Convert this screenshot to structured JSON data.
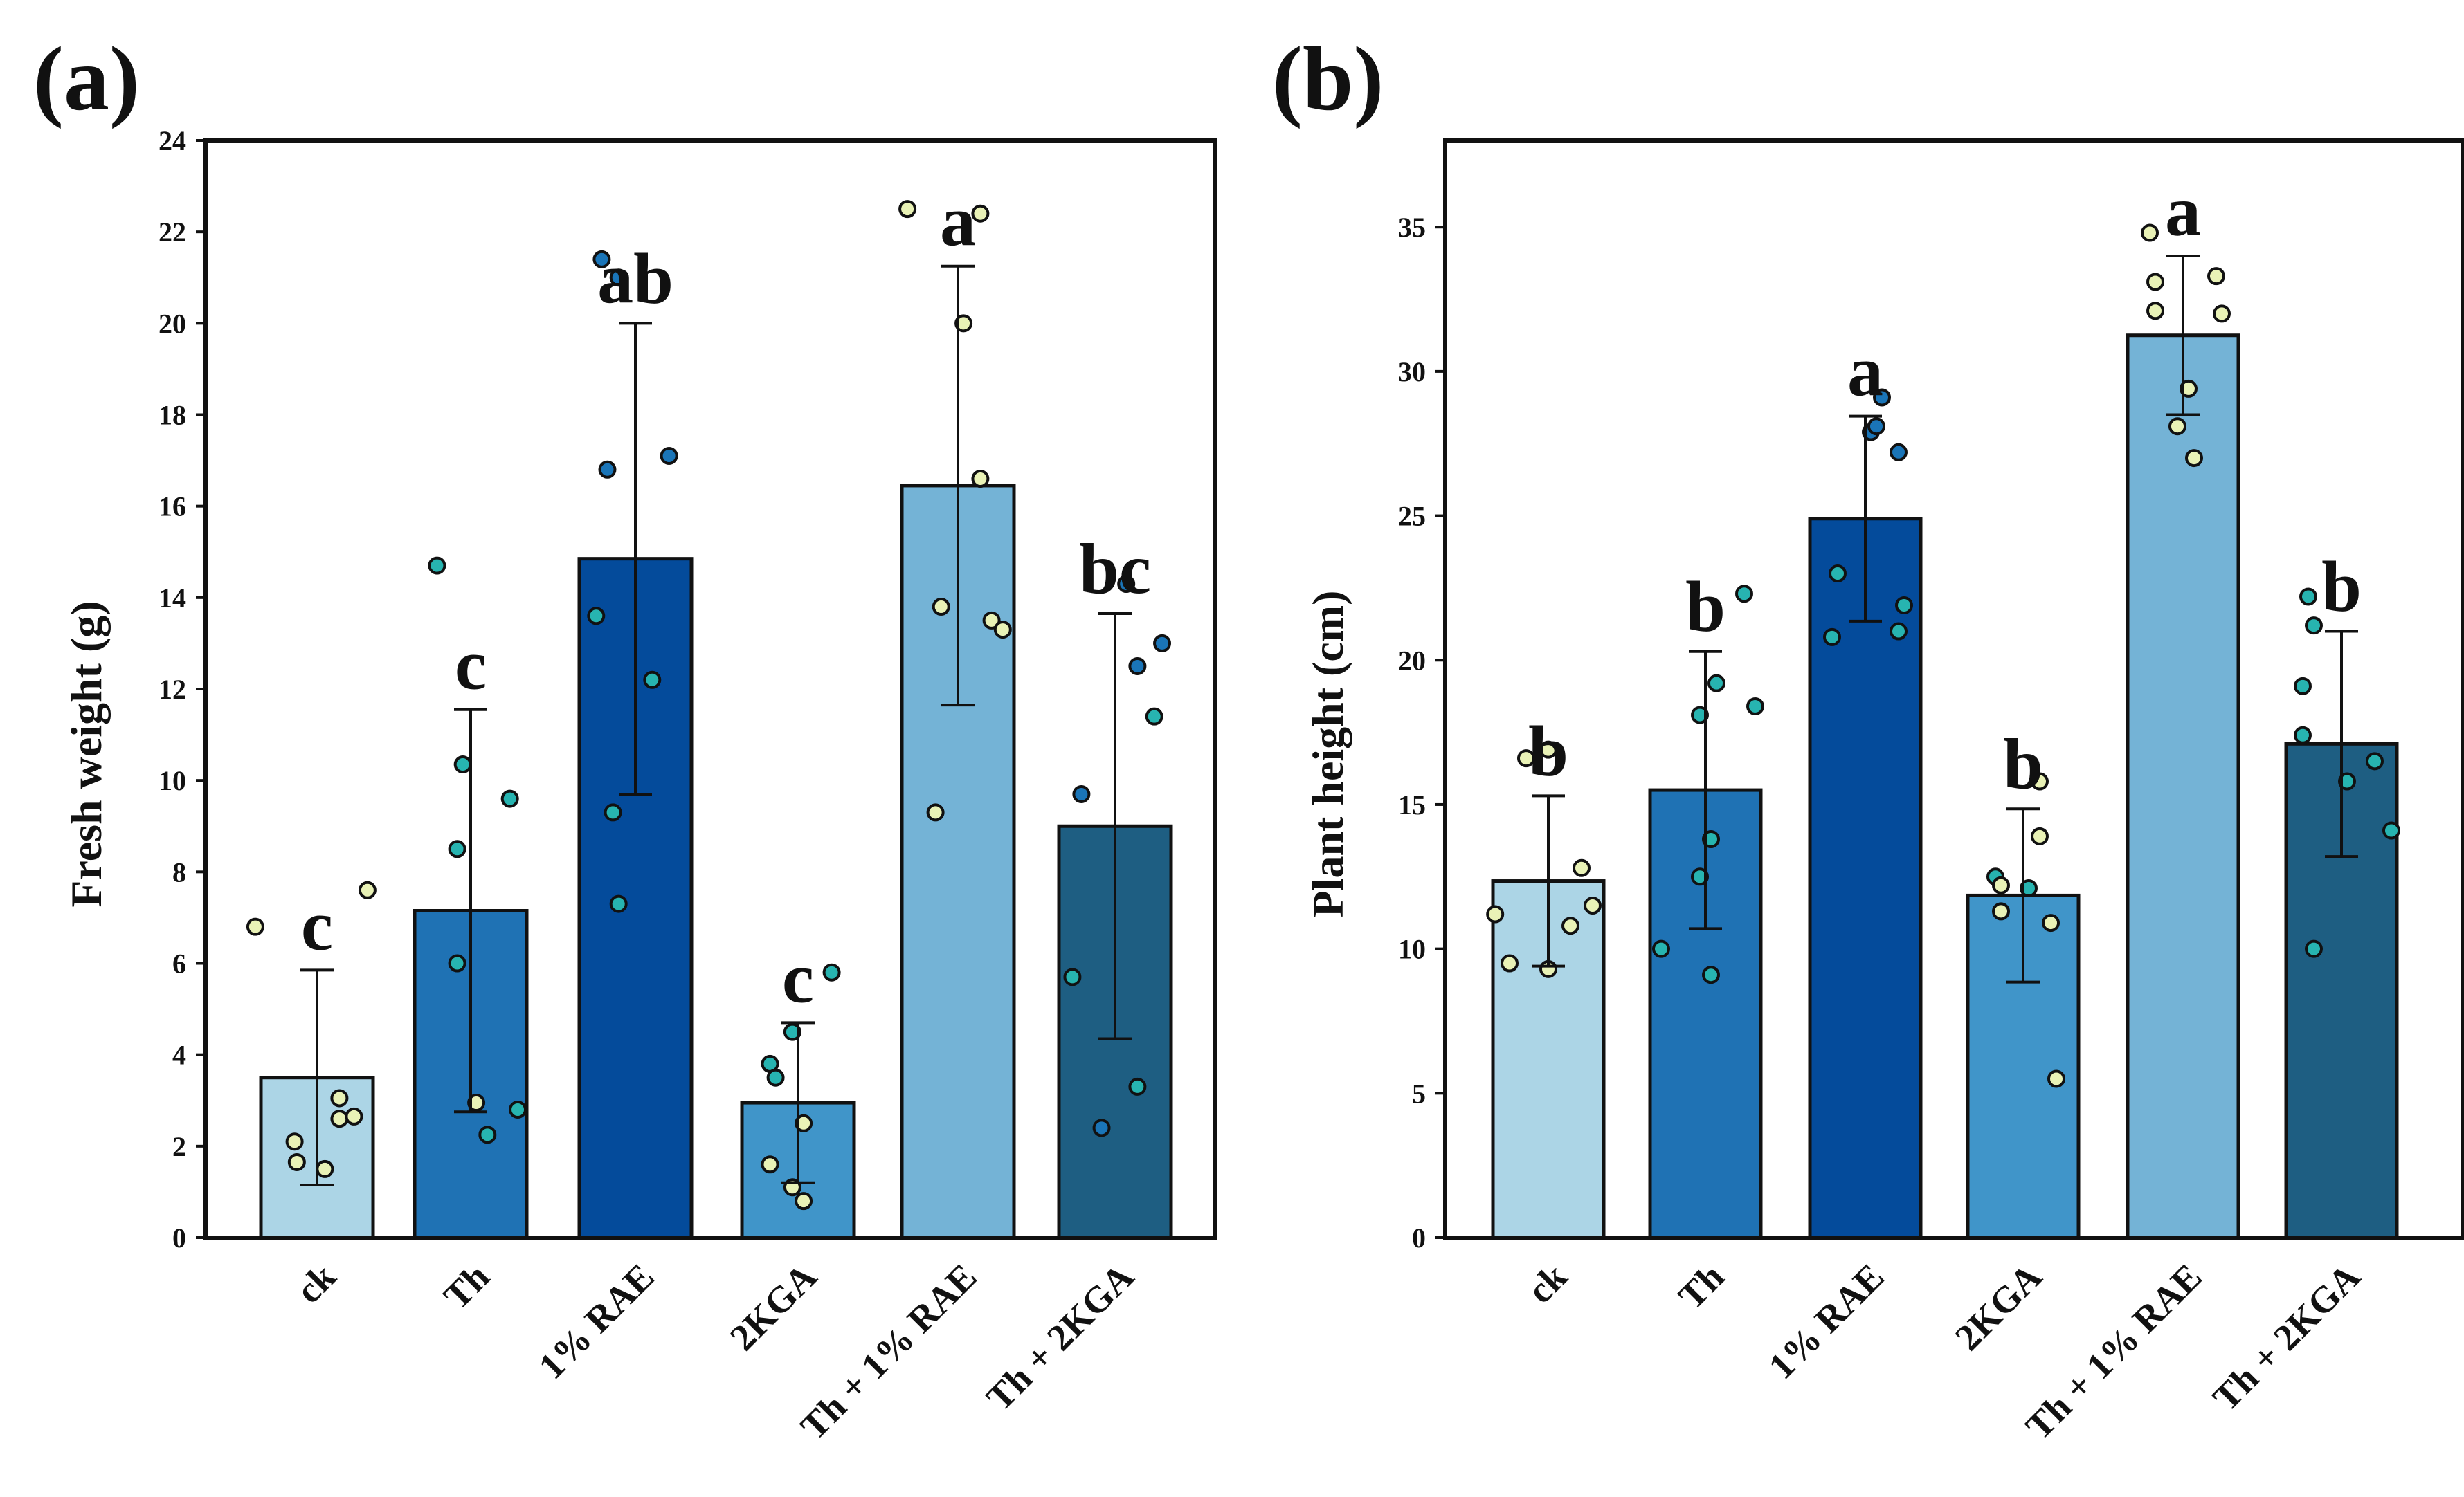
{
  "palette": {
    "bars": [
      "#acd5e6",
      "#1f72b4",
      "#044b9b",
      "#4095c9",
      "#74b3d6",
      "#1e5e82"
    ],
    "point_light": "#e9f2b6",
    "point_teal": "#27b4b0",
    "point_blue": "#1a75b8",
    "stroke": "#111111"
  },
  "chart_data": [
    {
      "type": "bar",
      "panel_label": "(a)",
      "title": "",
      "xlabel": "",
      "ylabel": "Fresh weight (g)",
      "ylim": [
        0,
        24
      ],
      "yticks": [
        0,
        2,
        4,
        6,
        8,
        10,
        12,
        14,
        16,
        18,
        20,
        22,
        24
      ],
      "categories": [
        "ck",
        "Th",
        "1% RAE",
        "2KGA",
        "Th + 1% RAE",
        "Th + 2KGA"
      ],
      "values": [
        3.5,
        7.15,
        14.85,
        2.95,
        16.45,
        9.0
      ],
      "error": [
        2.35,
        4.4,
        5.15,
        1.75,
        4.8,
        4.65
      ],
      "significance": [
        "c",
        "c",
        "ab",
        "c",
        "a",
        "bc"
      ],
      "points": [
        [
          [
            -0.55,
            6.8,
            "light"
          ],
          [
            -0.2,
            2.1,
            "light"
          ],
          [
            -0.18,
            1.65,
            "light"
          ],
          [
            0.07,
            1.5,
            "light"
          ],
          [
            0.2,
            3.05,
            "light"
          ],
          [
            0.2,
            2.6,
            "light"
          ],
          [
            0.33,
            2.65,
            "light"
          ],
          [
            0.45,
            7.6,
            "light"
          ]
        ],
        [
          [
            -0.3,
            14.7,
            "teal"
          ],
          [
            -0.12,
            8.5,
            "teal"
          ],
          [
            -0.12,
            6.0,
            "teal"
          ],
          [
            -0.07,
            10.35,
            "teal"
          ],
          [
            0.05,
            2.95,
            "light"
          ],
          [
            0.15,
            2.25,
            "teal"
          ],
          [
            0.35,
            9.6,
            "teal"
          ],
          [
            0.42,
            2.8,
            "teal"
          ]
        ],
        [
          [
            -0.35,
            13.6,
            "teal"
          ],
          [
            -0.3,
            21.4,
            "blue"
          ],
          [
            -0.25,
            16.8,
            "blue"
          ],
          [
            -0.2,
            9.3,
            "teal"
          ],
          [
            -0.15,
            21.0,
            "blue"
          ],
          [
            -0.15,
            7.3,
            "teal"
          ],
          [
            0.15,
            12.2,
            "teal"
          ],
          [
            0.3,
            17.1,
            "blue"
          ]
        ],
        [
          [
            -0.25,
            3.8,
            "teal"
          ],
          [
            -0.2,
            3.5,
            "teal"
          ],
          [
            -0.25,
            1.6,
            "light"
          ],
          [
            -0.05,
            4.5,
            "teal"
          ],
          [
            -0.05,
            1.1,
            "light"
          ],
          [
            0.05,
            0.8,
            "light"
          ],
          [
            0.05,
            2.5,
            "light"
          ],
          [
            0.3,
            5.8,
            "teal"
          ]
        ],
        [
          [
            -0.45,
            22.5,
            "light"
          ],
          [
            -0.15,
            13.8,
            "light"
          ],
          [
            -0.2,
            9.3,
            "light"
          ],
          [
            0.05,
            20.0,
            "light"
          ],
          [
            0.2,
            16.6,
            "light"
          ],
          [
            0.2,
            22.4,
            "light"
          ],
          [
            0.3,
            13.5,
            "light"
          ],
          [
            0.4,
            13.3,
            "light"
          ]
        ],
        [
          [
            -0.38,
            5.7,
            "teal"
          ],
          [
            -0.3,
            9.7,
            "blue"
          ],
          [
            -0.12,
            2.4,
            "blue"
          ],
          [
            0.1,
            14.3,
            "blue"
          ],
          [
            0.2,
            12.5,
            "blue"
          ],
          [
            0.2,
            3.3,
            "teal"
          ],
          [
            0.35,
            11.4,
            "teal"
          ],
          [
            0.42,
            13.0,
            "blue"
          ]
        ]
      ]
    },
    {
      "type": "bar",
      "panel_label": "(b)",
      "title": "",
      "xlabel": "",
      "ylabel": "Plant height (cm)",
      "ylim": [
        0,
        38
      ],
      "yticks": [
        0,
        5,
        10,
        15,
        20,
        25,
        30,
        35
      ],
      "categories": [
        "ck",
        "Th",
        "1% RAE",
        "2KGA",
        "Th + 1% RAE",
        "Th + 2KGA"
      ],
      "values": [
        12.35,
        15.5,
        24.9,
        11.85,
        31.25,
        17.1
      ],
      "error": [
        2.95,
        4.8,
        3.55,
        3.0,
        2.75,
        3.9
      ],
      "significance": [
        "b",
        "b",
        "a",
        "b",
        "a",
        "b"
      ],
      "points": [
        [
          [
            -0.48,
            11.2,
            "light"
          ],
          [
            -0.35,
            9.5,
            "light"
          ],
          [
            -0.2,
            16.6,
            "light"
          ],
          [
            0.0,
            16.9,
            "light"
          ],
          [
            0.0,
            9.3,
            "light"
          ],
          [
            0.2,
            10.8,
            "light"
          ],
          [
            0.3,
            12.8,
            "light"
          ],
          [
            0.4,
            11.5,
            "light"
          ]
        ],
        [
          [
            -0.4,
            10.0,
            "teal"
          ],
          [
            -0.05,
            18.1,
            "teal"
          ],
          [
            -0.05,
            12.5,
            "teal"
          ],
          [
            0.05,
            13.8,
            "teal"
          ],
          [
            0.1,
            19.2,
            "teal"
          ],
          [
            0.05,
            9.1,
            "teal"
          ],
          [
            0.35,
            22.3,
            "teal"
          ],
          [
            0.45,
            18.4,
            "teal"
          ]
        ],
        [
          [
            -0.25,
            23.0,
            "teal"
          ],
          [
            -0.3,
            20.8,
            "teal"
          ],
          [
            0.05,
            27.9,
            "blue"
          ],
          [
            0.1,
            28.1,
            "blue"
          ],
          [
            0.15,
            29.1,
            "blue"
          ],
          [
            0.3,
            27.2,
            "blue"
          ],
          [
            0.3,
            21.0,
            "teal"
          ],
          [
            0.35,
            21.9,
            "teal"
          ]
        ],
        [
          [
            -0.25,
            12.5,
            "teal"
          ],
          [
            -0.2,
            12.2,
            "light"
          ],
          [
            -0.2,
            11.3,
            "light"
          ],
          [
            0.05,
            12.1,
            "teal"
          ],
          [
            0.15,
            13.9,
            "light"
          ],
          [
            0.15,
            15.8,
            "light"
          ],
          [
            0.25,
            10.9,
            "light"
          ],
          [
            0.3,
            5.5,
            "light"
          ]
        ],
        [
          [
            -0.3,
            34.8,
            "light"
          ],
          [
            -0.25,
            33.1,
            "light"
          ],
          [
            -0.25,
            32.1,
            "light"
          ],
          [
            -0.05,
            28.1,
            "light"
          ],
          [
            0.05,
            29.4,
            "light"
          ],
          [
            0.1,
            27.0,
            "light"
          ],
          [
            0.3,
            33.3,
            "light"
          ],
          [
            0.35,
            32.0,
            "light"
          ]
        ],
        [
          [
            -0.35,
            19.1,
            "teal"
          ],
          [
            -0.3,
            22.2,
            "teal"
          ],
          [
            -0.35,
            17.4,
            "teal"
          ],
          [
            -0.25,
            10.0,
            "teal"
          ],
          [
            -0.25,
            21.2,
            "teal"
          ],
          [
            0.05,
            15.8,
            "teal"
          ],
          [
            0.3,
            16.5,
            "teal"
          ],
          [
            0.45,
            14.1,
            "teal"
          ]
        ]
      ]
    }
  ]
}
